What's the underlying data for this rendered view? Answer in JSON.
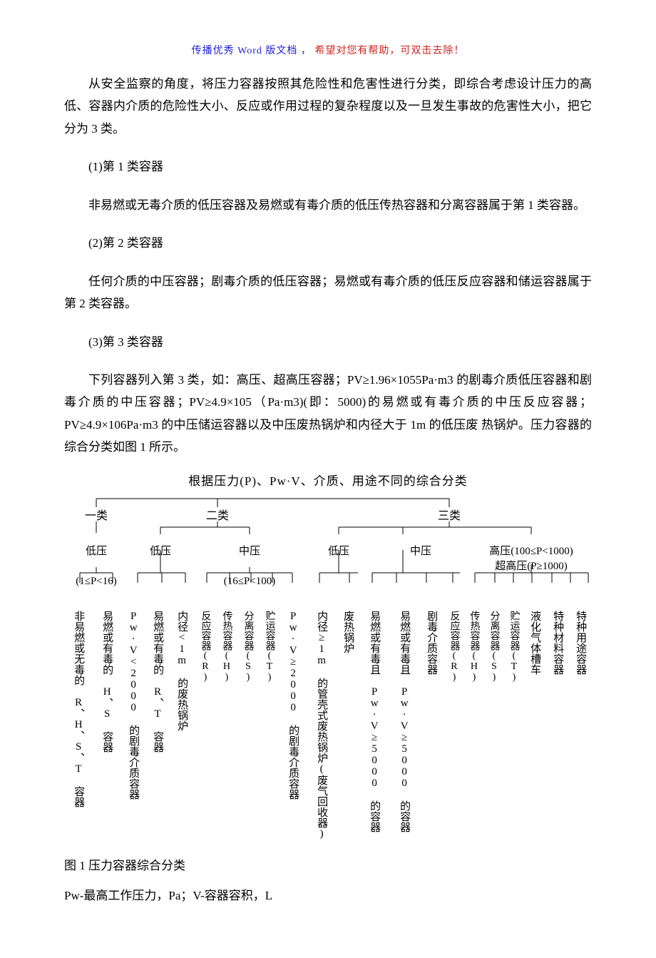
{
  "header": {
    "part1": "传播优秀 Word 版文档 ，",
    "part2": "希望对您有帮助，可双击去除！"
  },
  "paragraphs": {
    "p1": "从安全监察的角度，将压力容器按照其危险性和危害性进行分类，即综合考虑设计压力的高低、容器内介质的危险性大小、反应或作用过程的复杂程度以及一旦发生事故的危害性大小，把它分为 3 类。",
    "p2": "(1)第 1 类容器",
    "p3": "非易燃或无毒介质的低压容器及易燃或有毒介质的低压传热容器和分离容器属于第 1 类容器。",
    "p4": "(2)第 2 类容器",
    "p5": "任何介质的中压容器；剧毒介质的低压容器；易燃或有毒介质的低压反应容器和储运容器属于第 2 类容器。",
    "p6": "(3)第 3 类容器",
    "p7": "下列容器列入第 3 类，如：高压、超高压容器；PV≥1.96×1055Pa·m3 的剧毒介质低压容器和剧毒介质的中压容器；PV≥4.9×105（Pa·m3)(即：5000)的易燃或有毒介质的中压反应容器；PV≥4.9×106Pa·m3 的中压储运容器以及中压废热锅炉和内径大于 1m 的低压废 热锅炉。压力容器的综合分类如图 1 所示。"
  },
  "figure": {
    "title": "根据压力(P)、Pw·V、介质、用途不同的综合分类",
    "caption": "图 1 压力容器综合分类",
    "note": "Pw-最高工作压力，Pa；V-容器容积，L",
    "top": {
      "c1": "一类",
      "c2": "二类",
      "c3": "三类"
    },
    "sub": {
      "s1": "低压",
      "s2": "低压",
      "s3": "中压",
      "s4": "低压",
      "s5": "中压",
      "s6a": "高压(100≤P<1000)",
      "s6b": "超高压(P≥1000)"
    },
    "range": {
      "r1": "(1≤P<16)",
      "r3": "(16≤P<100)"
    },
    "leaves": {
      "l1": "非易燃或无毒的 R、H、S、T 容器",
      "l2": "易燃或有毒的 H、S 容器",
      "l3": "Pw·V<2000 的剧毒介质容器",
      "l4": "易燃或有毒的 R、T 容器",
      "l5": "内径<1m 的废热锅炉",
      "l6": "反应容器(R)",
      "l7": "传热容器(H)",
      "l8": "分离容器(S)",
      "l9": "贮运容器(T)",
      "l10": "Pw·V≥2000 的剧毒介质容器",
      "l11": "内径≥1m 的管壳式废热锅炉(废气回收器)",
      "l12": "废热锅炉",
      "l13": "易燃或有毒且 Pw·V≥5000 的容器",
      "l14": "易燃或有毒且 Pw·V≥5000 的容器",
      "l15": "剧毒介质容器",
      "l16": "反应容器(R)",
      "l17": "传热容器(H)",
      "l18": "分离容器(S)",
      "l19": "贮运容器(T)",
      "l20": "液化气体槽车",
      "l21": "特种材料容器",
      "l22": "特种用途容器"
    }
  },
  "layout": {
    "top_w": {
      "c1": 90,
      "c2": 250,
      "c3": 400
    },
    "sub_w": {
      "s1": 90,
      "s2": 90,
      "s3": 160,
      "s4": 90,
      "s5": 140,
      "s6": 170
    },
    "leaf_w": [
      40,
      40,
      34,
      34,
      34,
      30,
      30,
      30,
      30,
      38,
      42,
      32,
      42,
      42,
      34,
      28,
      28,
      28,
      28,
      32,
      32,
      32
    ]
  }
}
